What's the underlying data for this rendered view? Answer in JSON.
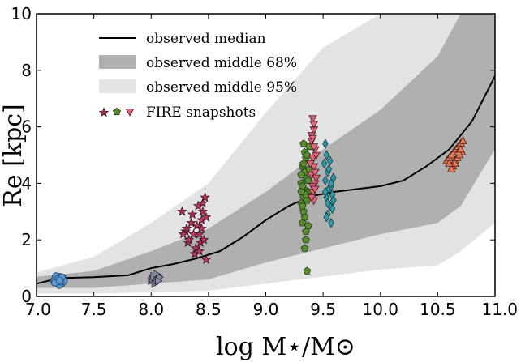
{
  "chart_data": {
    "type": "scatter",
    "xlabel": "log M⋆/M⊙",
    "ylabel": "Re [kpc]",
    "xlim": [
      7.0,
      11.0
    ],
    "ylim": [
      0,
      10
    ],
    "xticks": [
      "7.0",
      "7.5",
      "8.0",
      "8.5",
      "9.0",
      "9.5",
      "10.0",
      "10.5",
      "11.0"
    ],
    "yticks": [
      "0",
      "2",
      "4",
      "6",
      "8",
      "10"
    ],
    "grid": false,
    "legend_position": "top-left",
    "legend": {
      "median": "observed median",
      "band68": "observed middle 68%",
      "band95": "observed middle 95%",
      "fire": "FIRE snapshots"
    },
    "colors": {
      "median": "#000000",
      "band68": "#b0b0b0",
      "band95": "#e3e3e3"
    },
    "median": {
      "x": [
        7.0,
        7.2,
        7.5,
        7.8,
        8.0,
        8.2,
        8.4,
        8.6,
        8.8,
        9.0,
        9.2,
        9.4,
        9.6,
        9.8,
        10.0,
        10.2,
        10.4,
        10.6,
        10.8,
        11.0
      ],
      "y": [
        0.45,
        0.65,
        0.68,
        0.75,
        1.0,
        1.15,
        1.35,
        1.6,
        2.1,
        2.7,
        3.2,
        3.55,
        3.7,
        3.8,
        3.9,
        4.1,
        4.6,
        5.2,
        6.2,
        7.8
      ]
    },
    "band68": {
      "x": [
        7.0,
        7.5,
        8.0,
        8.5,
        9.0,
        9.5,
        10.0,
        10.5,
        10.7,
        11.0
      ],
      "lower": [
        0.3,
        0.3,
        0.45,
        0.6,
        1.2,
        1.7,
        2.2,
        2.6,
        3.2,
        5.2
      ],
      "upper": [
        0.7,
        0.9,
        1.6,
        2.4,
        3.7,
        5.2,
        6.6,
        8.5,
        10.0,
        10.0
      ]
    },
    "band95": {
      "x": [
        7.0,
        7.5,
        8.0,
        8.5,
        9.0,
        9.5,
        10.0,
        10.5,
        10.7,
        11.0
      ],
      "lower": [
        0.1,
        0.1,
        0.15,
        0.2,
        0.45,
        0.7,
        0.95,
        1.1,
        1.6,
        2.6
      ],
      "upper": [
        0.85,
        1.4,
        2.6,
        4.0,
        6.5,
        8.8,
        10.0,
        10.0,
        10.0,
        10.0
      ]
    },
    "series": [
      {
        "marker": "circle",
        "color": "#5b9bd5",
        "edge": "#1f3b5b",
        "points": [
          [
            7.15,
            0.55
          ],
          [
            7.17,
            0.65
          ],
          [
            7.19,
            0.5
          ],
          [
            7.2,
            0.7
          ],
          [
            7.21,
            0.6
          ],
          [
            7.22,
            0.45
          ],
          [
            7.16,
            0.62
          ],
          [
            7.18,
            0.58
          ],
          [
            7.23,
            0.66
          ],
          [
            7.2,
            0.4
          ],
          [
            7.24,
            0.55
          ],
          [
            7.17,
            0.72
          ],
          [
            7.19,
            0.63
          ],
          [
            7.21,
            0.52
          ],
          [
            7.22,
            0.68
          ],
          [
            7.16,
            0.48
          ],
          [
            7.2,
            0.57
          ]
        ]
      },
      {
        "marker": "triangle-right",
        "color": "#8a8aa0",
        "edge": "#2a2a3a",
        "points": [
          [
            8.0,
            0.55
          ],
          [
            8.02,
            0.65
          ],
          [
            8.03,
            0.5
          ],
          [
            8.05,
            0.7
          ],
          [
            8.04,
            0.6
          ],
          [
            8.06,
            0.75
          ],
          [
            8.01,
            0.62
          ],
          [
            8.03,
            0.45
          ],
          [
            8.05,
            0.57
          ],
          [
            8.07,
            0.68
          ],
          [
            8.02,
            0.72
          ],
          [
            8.06,
            0.55
          ],
          [
            8.04,
            0.8
          ]
        ]
      },
      {
        "marker": "star",
        "color": "#b4385a",
        "edge": "#3a0f1c",
        "points": [
          [
            8.27,
            3.0
          ],
          [
            8.3,
            2.3
          ],
          [
            8.32,
            1.9
          ],
          [
            8.35,
            2.6
          ],
          [
            8.33,
            2.0
          ],
          [
            8.38,
            1.5
          ],
          [
            8.4,
            2.5
          ],
          [
            8.41,
            3.2
          ],
          [
            8.42,
            2.2
          ],
          [
            8.43,
            1.9
          ],
          [
            8.44,
            2.7
          ],
          [
            8.45,
            3.3
          ],
          [
            8.46,
            2.0
          ],
          [
            8.47,
            3.5
          ],
          [
            8.48,
            1.3
          ],
          [
            8.44,
            2.4
          ],
          [
            8.39,
            1.7
          ],
          [
            8.36,
            2.9
          ],
          [
            8.31,
            2.4
          ],
          [
            8.28,
            2.2
          ],
          [
            8.45,
            3.0
          ],
          [
            8.42,
            1.6
          ],
          [
            8.48,
            2.8
          ],
          [
            8.37,
            2.2
          ]
        ]
      },
      {
        "marker": "pentagon",
        "color": "#5a8a32",
        "edge": "#1c3a10",
        "points": [
          [
            9.31,
            4.0
          ],
          [
            9.32,
            4.6
          ],
          [
            9.33,
            3.5
          ],
          [
            9.34,
            5.1
          ],
          [
            9.35,
            4.2
          ],
          [
            9.33,
            3.0
          ],
          [
            9.32,
            2.6
          ],
          [
            9.35,
            2.0
          ],
          [
            9.34,
            1.7
          ],
          [
            9.36,
            0.9
          ],
          [
            9.31,
            3.3
          ],
          [
            9.33,
            3.8
          ],
          [
            9.35,
            4.9
          ],
          [
            9.37,
            3.7
          ],
          [
            9.38,
            5.3
          ],
          [
            9.34,
            4.4
          ],
          [
            9.32,
            3.9
          ],
          [
            9.36,
            3.4
          ],
          [
            9.35,
            2.3
          ],
          [
            9.33,
            4.7
          ],
          [
            9.37,
            4.1
          ],
          [
            9.31,
            4.3
          ],
          [
            9.36,
            5.0
          ],
          [
            9.32,
            3.2
          ],
          [
            9.34,
            2.8
          ],
          [
            9.38,
            4.5
          ],
          [
            9.35,
            3.6
          ],
          [
            9.33,
            5.4
          ],
          [
            9.37,
            2.5
          ],
          [
            9.31,
            3.7
          ]
        ]
      },
      {
        "marker": "triangle-down",
        "color": "#e06478",
        "edge": "#4a1520",
        "points": [
          [
            9.41,
            6.3
          ],
          [
            9.42,
            5.9
          ],
          [
            9.4,
            5.5
          ],
          [
            9.43,
            5.2
          ],
          [
            9.41,
            4.9
          ],
          [
            9.42,
            4.6
          ],
          [
            9.4,
            4.3
          ],
          [
            9.43,
            4.0
          ],
          [
            9.41,
            3.7
          ],
          [
            9.42,
            3.4
          ],
          [
            9.44,
            5.0
          ],
          [
            9.4,
            5.7
          ],
          [
            9.43,
            4.4
          ],
          [
            9.42,
            6.1
          ],
          [
            9.41,
            3.9
          ],
          [
            9.39,
            4.7
          ],
          [
            9.44,
            4.2
          ],
          [
            9.4,
            3.5
          ],
          [
            9.42,
            5.3
          ],
          [
            9.43,
            3.8
          ],
          [
            9.41,
            5.6
          ]
        ]
      },
      {
        "marker": "diamond",
        "color": "#2f9ba8",
        "edge": "#0f3a40",
        "points": [
          [
            9.52,
            5.4
          ],
          [
            9.53,
            5.0
          ],
          [
            9.51,
            4.7
          ],
          [
            9.54,
            4.4
          ],
          [
            9.52,
            4.1
          ],
          [
            9.55,
            3.8
          ],
          [
            9.53,
            3.5
          ],
          [
            9.56,
            3.2
          ],
          [
            9.54,
            2.9
          ],
          [
            9.57,
            2.6
          ],
          [
            9.58,
            3.6
          ],
          [
            9.55,
            4.5
          ],
          [
            9.57,
            3.9
          ],
          [
            9.59,
            4.2
          ],
          [
            9.53,
            2.8
          ],
          [
            9.56,
            4.8
          ],
          [
            9.58,
            3.1
          ],
          [
            9.54,
            3.3
          ],
          [
            9.57,
            4.0
          ],
          [
            9.52,
            3.7
          ],
          [
            9.59,
            3.4
          ]
        ]
      },
      {
        "marker": "triangle-up",
        "color": "#e8785a",
        "edge": "#4a1e10",
        "points": [
          [
            10.58,
            4.8
          ],
          [
            10.6,
            4.9
          ],
          [
            10.62,
            5.0
          ],
          [
            10.63,
            4.6
          ],
          [
            10.64,
            5.1
          ],
          [
            10.65,
            4.8
          ],
          [
            10.66,
            5.2
          ],
          [
            10.67,
            4.9
          ],
          [
            10.68,
            5.3
          ],
          [
            10.69,
            5.0
          ],
          [
            10.7,
            5.4
          ],
          [
            10.71,
            5.1
          ],
          [
            10.72,
            5.5
          ],
          [
            10.62,
            4.5
          ],
          [
            10.65,
            4.7
          ],
          [
            10.68,
            5.1
          ],
          [
            10.6,
            4.7
          ],
          [
            10.7,
            5.2
          ]
        ]
      }
    ]
  }
}
